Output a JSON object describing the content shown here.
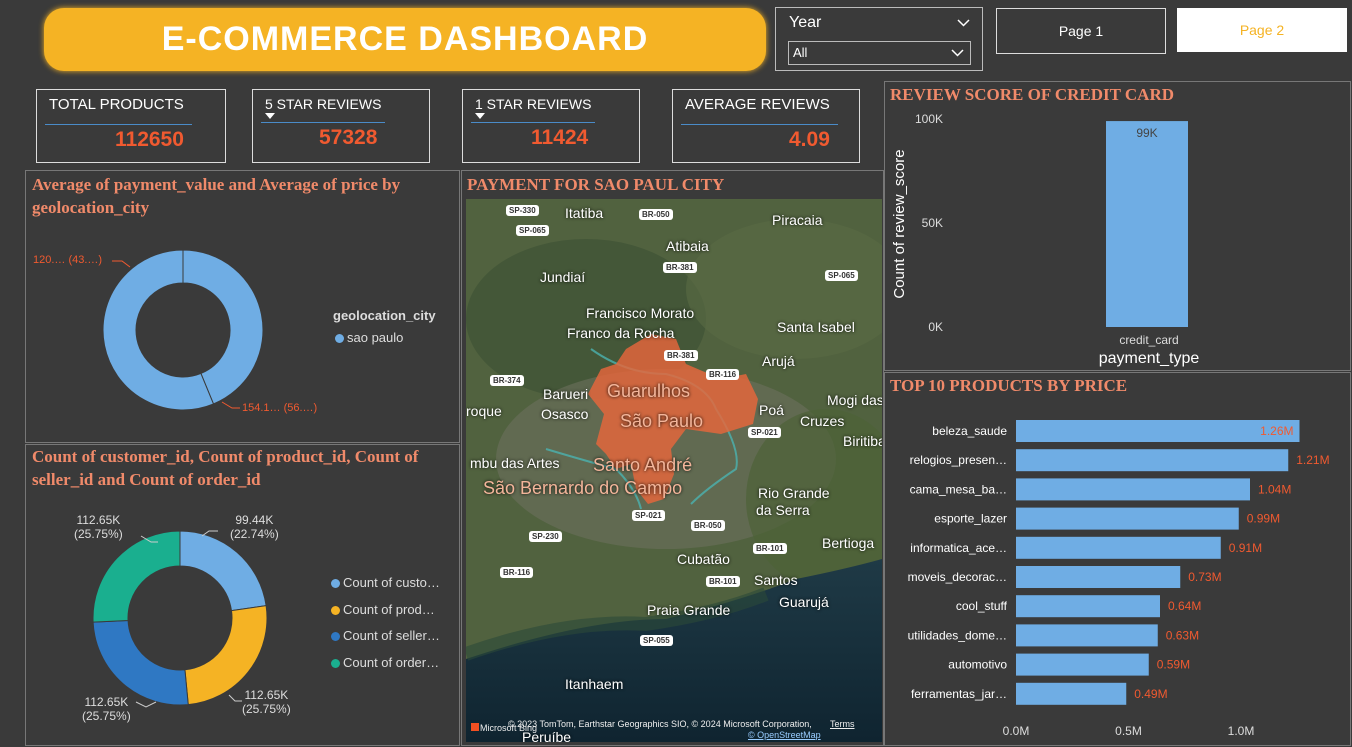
{
  "header": {
    "title": "E-COMMERCE DASHBOARD"
  },
  "filter": {
    "label": "Year",
    "selected": "All"
  },
  "pages": [
    {
      "label": "Page 1"
    },
    {
      "label": "Page 2"
    }
  ],
  "kpis": [
    {
      "label": "TOTAL PRODUCTS",
      "value": "112650"
    },
    {
      "label": "5 STAR REVIEWS",
      "value": "57328"
    },
    {
      "label": "1 STAR REVIEWS",
      "value": "11424"
    },
    {
      "label": "AVERAGE REVIEWS",
      "value": "4.09"
    }
  ],
  "panels": {
    "donut1": {
      "title": "Average of payment_value and Average of price by geolocation_city",
      "label_a": "120.… (43.…)",
      "label_b": "154.1… (56.…)",
      "legend_title": "geolocation_city",
      "legend_item": "sao paulo"
    },
    "donut2": {
      "title": "Count of customer_id, Count of product_id, Count of seller_id and Count of order_id",
      "labels": [
        {
          "value": "99.44K",
          "pct": "(22.74%)"
        },
        {
          "value": "112.65K",
          "pct": "(25.75%)"
        },
        {
          "value": "112.65K",
          "pct": "(25.75%)"
        },
        {
          "value": "112.65K",
          "pct": "(25.75%)"
        }
      ],
      "legend": [
        "Count of custo…",
        "Count of prod…",
        "Count of seller…",
        "Count of order…"
      ]
    },
    "map": {
      "title": "PAYMENT FOR SAO PAUL CITY",
      "places": [
        "Itatiba",
        "Piracaia",
        "Atibaia",
        "Jundiaí",
        "Francisco Morato",
        "Franco da Rocha",
        "Santa Isabel",
        "Arujá",
        "Guarulhos",
        "Barueri",
        "Osasco",
        "Mogi das",
        "Cruzes",
        "São Paulo",
        "Poá",
        "Biritiba",
        "Santo André",
        "mbu das Artes",
        "São Bernardo do Campo",
        "Rio Grande",
        "da Serra",
        "Bertioga",
        "Cubatão",
        "Santos",
        "Praia Grande",
        "Guarujá",
        "Itanhaem",
        "Peruíbe",
        "roque"
      ],
      "roads": [
        "SP-330",
        "SP-065",
        "BR-050",
        "BR-381",
        "SP-065",
        "BR-381",
        "BR-374",
        "BR-116",
        "SP-021",
        "SP-230",
        "SP-021",
        "BR-050",
        "BR-101",
        "BR-116",
        "BR-101",
        "SP-055"
      ],
      "credits": "© 2023 TomTom, Earthstar Geographics SIO, © 2024 Microsoft Corporation,",
      "terms": "Terms",
      "osm": "© OpenStreetMap",
      "bing": "Microsoft Bing"
    },
    "review": {
      "title": "REVIEW SCORE OF CREDIT CARD"
    },
    "top10": {
      "title": "TOP 10 PRODUCTS BY PRICE"
    }
  },
  "colors": {
    "accent": "#f5b324",
    "value": "#f05a30",
    "bar": "#6fade4",
    "teal": "#1aaf8f",
    "yellow": "#f5b324",
    "blue": "#2f78c3",
    "light": "#6fade4"
  },
  "chart_data": [
    {
      "type": "pie",
      "name": "donut1",
      "values": [
        120,
        154.1
      ],
      "labels": [
        "120.… (43.…)",
        "154.1… (56.…)"
      ]
    },
    {
      "type": "pie",
      "name": "donut2",
      "series": [
        {
          "name": "Count of custo…",
          "value": 99.44,
          "label": "99.44K",
          "pct": "(22.74%)"
        },
        {
          "name": "Count of prod…",
          "value": 112.65,
          "label": "112.65K",
          "pct": "(25.75%)"
        },
        {
          "name": "Count of seller…",
          "value": 112.65,
          "label": "112.65K",
          "pct": "(25.75%)"
        },
        {
          "name": "Count of order…",
          "value": 112.65,
          "label": "112.65K",
          "pct": "(25.75%)"
        }
      ]
    },
    {
      "type": "bar",
      "name": "review",
      "title": "REVIEW SCORE OF CREDIT CARD",
      "categories": [
        "credit_card"
      ],
      "values": [
        99000
      ],
      "data_labels": [
        "99K"
      ],
      "xlabel": "payment_type",
      "ylabel": "Count of review_score",
      "yticks": [
        "0K",
        "50K",
        "100K"
      ],
      "ylim": [
        0,
        100000
      ]
    },
    {
      "type": "bar",
      "name": "top10",
      "orientation": "horizontal",
      "title": "TOP 10 PRODUCTS BY PRICE",
      "categories": [
        "beleza_saude",
        "relogios_presen…",
        "cama_mesa_ba…",
        "esporte_lazer",
        "informatica_ace…",
        "moveis_decorac…",
        "cool_stuff",
        "utilidades_dome…",
        "automotivo",
        "ferramentas_jar…"
      ],
      "values": [
        1.26,
        1.21,
        1.04,
        0.99,
        0.91,
        0.73,
        0.64,
        0.63,
        0.59,
        0.49
      ],
      "data_labels": [
        "1.26M",
        "1.21M",
        "1.04M",
        "0.99M",
        "0.91M",
        "0.73M",
        "0.64M",
        "0.63M",
        "0.59M",
        "0.49M"
      ],
      "xticks": [
        "0.0M",
        "0.5M",
        "1.0M"
      ],
      "xlim": [
        0,
        1.3
      ]
    }
  ]
}
